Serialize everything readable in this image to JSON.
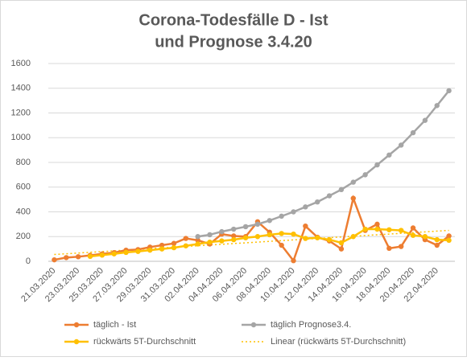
{
  "chart_data": {
    "type": "line",
    "title": [
      "Corona-Todesfälle D - Ist",
      "und Prognose 3.4.20"
    ],
    "categories": [
      "21.03.2020",
      null,
      "23.03.2020",
      null,
      "25.03.2020",
      null,
      "27.03.2020",
      null,
      "29.03.2020",
      null,
      "31.03.2020",
      null,
      "02.04.2020",
      null,
      "04.04.2020",
      null,
      "06.04.2020",
      null,
      "08.04.2020",
      null,
      "10.04.2020",
      null,
      "12.04.2020",
      null,
      "14.04.2020",
      null,
      "16.04.2020",
      null,
      "18.04.2020",
      null,
      "20.04.2020",
      null,
      "22.04.2020",
      null
    ],
    "series": [
      {
        "name": "täglich - Ist",
        "color": "#ED7D31",
        "values": [
          12,
          30,
          37,
          48,
          60,
          70,
          90,
          95,
          115,
          130,
          145,
          185,
          170,
          140,
          220,
          205,
          200,
          320,
          235,
          130,
          5,
          285,
          195,
          165,
          100,
          510,
          250,
          300,
          105,
          120,
          270,
          175,
          130,
          205
        ]
      },
      {
        "name": "täglich Prognose3.4.",
        "color": "#A5A5A5",
        "values": [
          null,
          null,
          null,
          null,
          null,
          null,
          null,
          null,
          null,
          null,
          null,
          null,
          200,
          215,
          240,
          260,
          280,
          300,
          330,
          365,
          400,
          440,
          480,
          530,
          580,
          640,
          700,
          780,
          860,
          940,
          1040,
          1140,
          1260,
          1380
        ]
      },
      {
        "name": "rückwärts 5T-Durchschnitt",
        "color": "#FFC000",
        "values": [
          null,
          null,
          null,
          40,
          50,
          60,
          72,
          80,
          90,
          100,
          110,
          125,
          140,
          155,
          165,
          175,
          190,
          200,
          215,
          225,
          220,
          185,
          190,
          175,
          150,
          200,
          260,
          260,
          255,
          250,
          210,
          200,
          175,
          170
        ]
      }
    ],
    "trendline": {
      "name": "Linear (rückwärts 5T-Durchschnitt)",
      "color": "#FFC000",
      "values": [
        55,
        250
      ]
    },
    "ylim": [
      0,
      1600
    ],
    "yticks": [
      0,
      200,
      400,
      600,
      800,
      1000,
      1200,
      1400,
      1600
    ],
    "grid": true
  }
}
